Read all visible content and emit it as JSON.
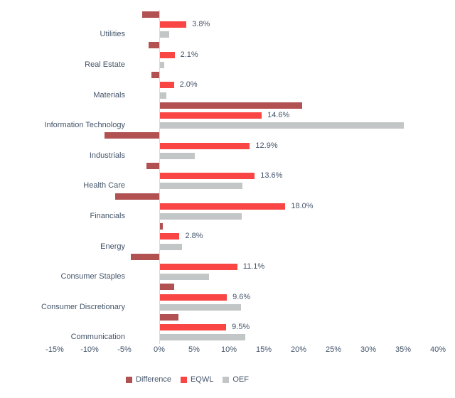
{
  "chart_data": {
    "type": "bar",
    "orientation": "horizontal",
    "title": "",
    "xlabel": "",
    "ylabel": "",
    "grid": false,
    "text_color": "#44546A",
    "zero_line_color": "#d9d9d9",
    "categories": [
      "Utilities",
      "Real Estate",
      "Materials",
      "Information Technology",
      "Industrials",
      "Health Care",
      "Financials",
      "Energy",
      "Consumer Staples",
      "Consumer Discretionary",
      "Communication"
    ],
    "series": [
      {
        "name": "Difference",
        "color": "#B25151",
        "values": [
          -2.5,
          -1.5,
          -1.1,
          20.4,
          -7.9,
          -1.8,
          -6.3,
          0.4,
          -4.1,
          2.0,
          2.7
        ]
      },
      {
        "name": "EQWL",
        "color": "#FA4545",
        "values": [
          3.8,
          2.1,
          2.0,
          14.6,
          12.9,
          13.6,
          18.0,
          2.8,
          11.1,
          9.6,
          9.5
        ],
        "data_labels": [
          "3.8%",
          "2.1%",
          "2.0%",
          "14.6%",
          "12.9%",
          "13.6%",
          "18.0%",
          "2.8%",
          "11.1%",
          "9.6%",
          "9.5%"
        ]
      },
      {
        "name": "OEF",
        "color": "#C3C6C6",
        "values": [
          1.3,
          0.6,
          0.9,
          35.0,
          5.0,
          11.8,
          11.7,
          3.2,
          7.0,
          11.6,
          12.2
        ]
      }
    ],
    "x_axis": {
      "min": -15,
      "max": 40,
      "step": 5,
      "ticks": [
        "-15%",
        "-10%",
        "-5%",
        "0%",
        "5%",
        "10%",
        "15%",
        "20%",
        "25%",
        "30%",
        "35%",
        "40%"
      ]
    },
    "legend": {
      "position": "bottom",
      "entries": [
        "Difference",
        "EQWL",
        "OEF"
      ]
    }
  }
}
